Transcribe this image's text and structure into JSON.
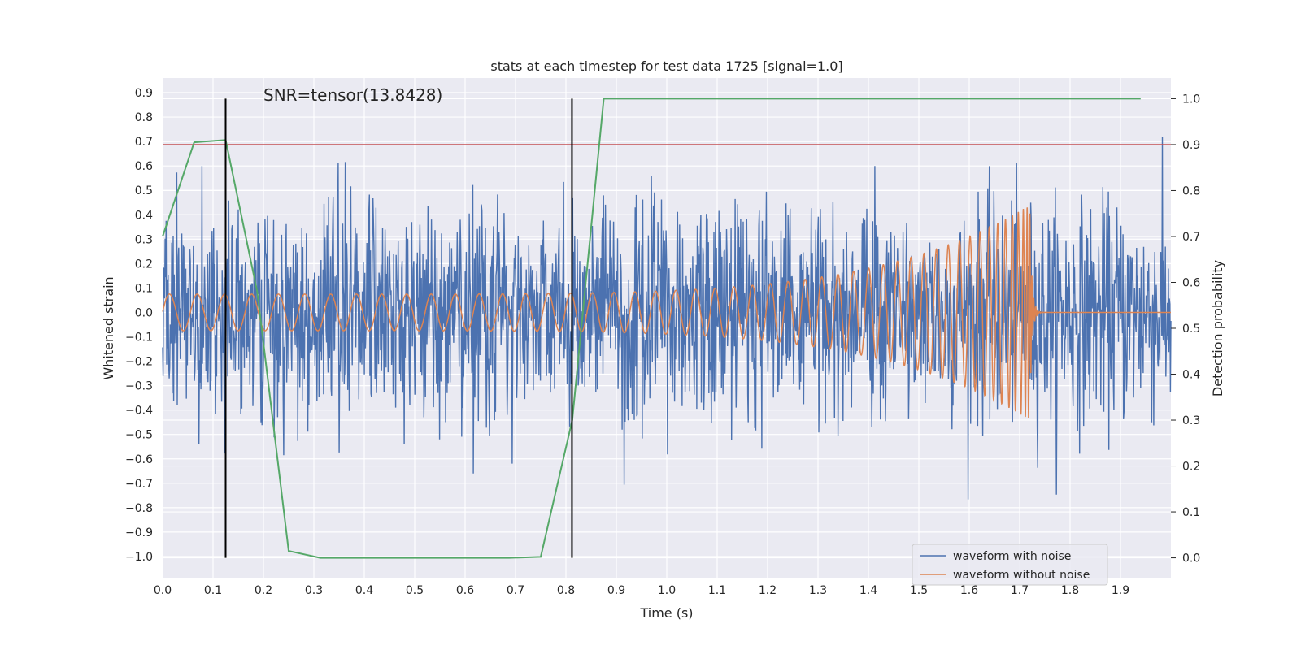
{
  "chart_data": {
    "type": "line",
    "title": "stats at each timestep for test data 1725 [signal=1.0]",
    "annotation": "SNR=tensor(13.8428)",
    "xlabel": "Time (s)",
    "ylabel_left": "Whitened strain",
    "ylabel_right": "Detection probability",
    "xlim": [
      0.0,
      2.0
    ],
    "ylim_left": [
      -1.09,
      0.96
    ],
    "ylim_right": [
      -0.045,
      1.045
    ],
    "x_ticks": [
      "0.0",
      "0.1",
      "0.2",
      "0.3",
      "0.4",
      "0.5",
      "0.6",
      "0.7",
      "0.8",
      "0.9",
      "1.0",
      "1.1",
      "1.2",
      "1.3",
      "1.4",
      "1.5",
      "1.6",
      "1.7",
      "1.8",
      "1.9"
    ],
    "y_ticks_left": [
      "0.9",
      "0.8",
      "0.7",
      "0.6",
      "0.5",
      "0.4",
      "0.3",
      "0.2",
      "0.1",
      "0.0",
      "−0.1",
      "−0.2",
      "−0.3",
      "−0.4",
      "−0.5",
      "−0.6",
      "−0.7",
      "−0.8",
      "−0.9",
      "−1.0"
    ],
    "y_ticks_right": [
      "1.0",
      "0.9",
      "0.8",
      "0.7",
      "0.6",
      "0.5",
      "0.4",
      "0.3",
      "0.2",
      "0.1",
      "0.0"
    ],
    "grid": true,
    "legend_position": "bottom-right",
    "series": [
      {
        "name": "waveform with noise",
        "axis": "left",
        "color": "#4c72b0",
        "kind": "noise",
        "x_range": [
          0.0,
          2.0
        ],
        "approx_std": 0.22,
        "approx_min": -0.98,
        "approx_max": 0.87
      },
      {
        "name": "waveform without noise",
        "axis": "left",
        "color": "#dd8452",
        "kind": "chirp",
        "x_range": [
          0.0,
          2.0
        ],
        "merger_time": 1.72,
        "initial_amplitude": 0.075,
        "peak_amplitude": 0.44
      },
      {
        "axis": "right",
        "color": "#55a868",
        "kind": "probability",
        "x": [
          0.0,
          0.0625,
          0.125,
          0.1875,
          0.25,
          0.3125,
          0.375,
          0.4375,
          0.5,
          0.5625,
          0.625,
          0.6875,
          0.75,
          0.8125,
          0.875,
          0.9375,
          1.0,
          1.1,
          1.2,
          1.3,
          1.4,
          1.5,
          1.6,
          1.7,
          1.8,
          1.9,
          1.94
        ],
        "y": [
          0.7,
          0.905,
          0.91,
          0.58,
          0.015,
          0.0,
          0.0,
          0.0,
          0.0,
          0.0,
          0.0,
          0.0,
          0.002,
          0.3,
          1.0,
          1.0,
          1.0,
          1.0,
          1.0,
          1.0,
          1.0,
          1.0,
          1.0,
          1.0,
          1.0,
          1.0,
          1.0
        ]
      }
    ],
    "threshold_line": {
      "axis": "right",
      "value": 0.9,
      "color": "#c44e52"
    },
    "vertical_markers": {
      "x": [
        0.125,
        0.812
      ],
      "color": "#000000"
    }
  }
}
